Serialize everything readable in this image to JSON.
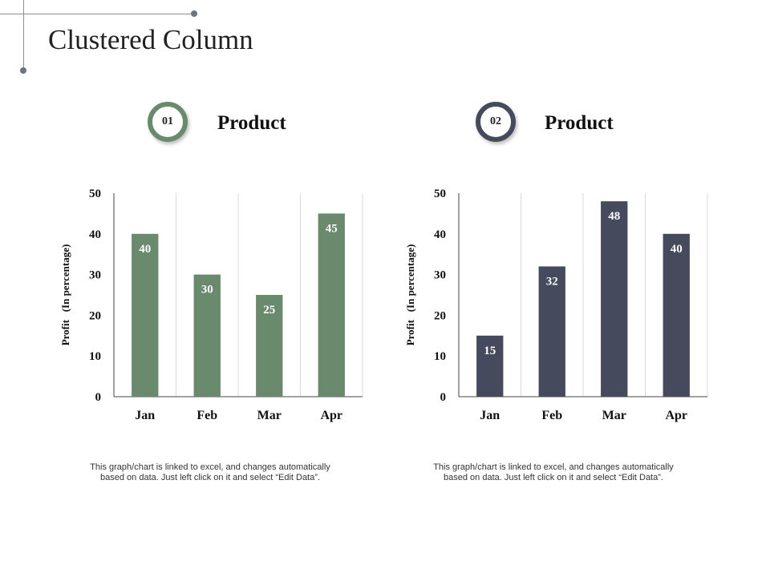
{
  "page": {
    "title": "Clustered Column"
  },
  "colors": {
    "primary": "#6a8a6e",
    "secondary": "#454a5c",
    "grid": "#d9d9d9",
    "axis": "#444444"
  },
  "panels": [
    {
      "number": "01",
      "heading": "Product",
      "note": "This graph/chart is linked to excel, and changes automatically based on data. Just left click on it and select “Edit Data”."
    },
    {
      "number": "02",
      "heading": "Product",
      "note": "This graph/chart is linked to excel, and changes automatically based on data. Just left click on it and select “Edit Data”."
    }
  ],
  "chart_data": [
    {
      "type": "bar",
      "title": "",
      "categories": [
        "Jan",
        "Feb",
        "Mar",
        "Apr"
      ],
      "values": [
        40,
        30,
        25,
        45
      ],
      "color": "#6a8a6e",
      "xlabel": "",
      "ylabel": "Profit   (In percentage)",
      "ylim": [
        0,
        50
      ],
      "yticks": [
        0,
        10,
        20,
        30,
        40,
        50
      ],
      "grid": true
    },
    {
      "type": "bar",
      "title": "",
      "categories": [
        "Jan",
        "Feb",
        "Mar",
        "Apr"
      ],
      "values": [
        15,
        32,
        48,
        40
      ],
      "color": "#454a5c",
      "xlabel": "",
      "ylabel": "Profit   (In percentage)",
      "ylim": [
        0,
        50
      ],
      "yticks": [
        0,
        10,
        20,
        30,
        40,
        50
      ],
      "grid": true
    }
  ]
}
